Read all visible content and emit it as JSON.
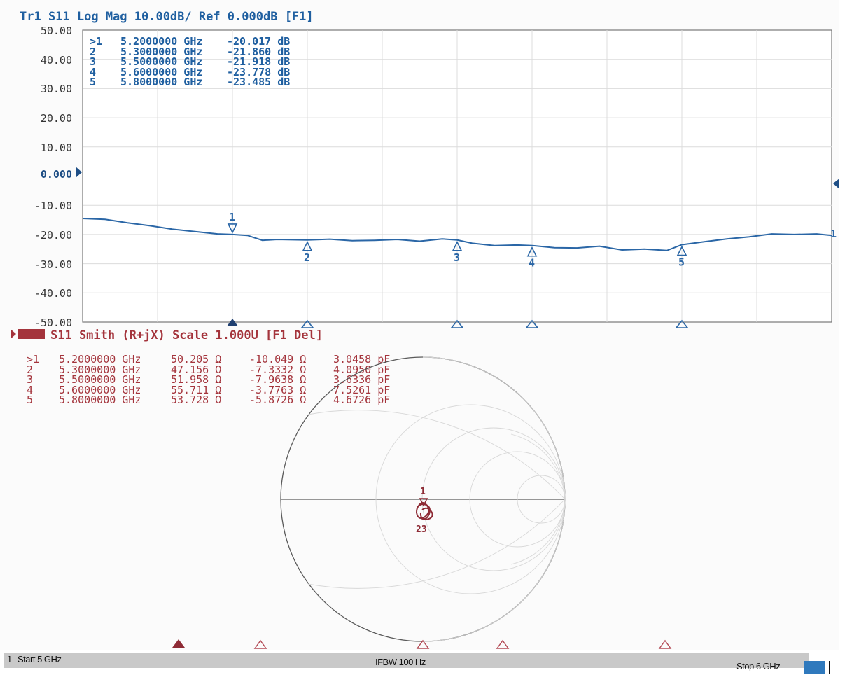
{
  "trace1": {
    "header": "Tr1 S11 Log Mag 10.00dB/ Ref 0.000dB [F1]",
    "ref_label": "0.000",
    "y_ticks": [
      "50.00",
      "40.00",
      "30.00",
      "20.00",
      "10.00",
      "0.000",
      "-10.00",
      "-20.00",
      "-30.00",
      "-40.00",
      "-50.00"
    ],
    "markers": [
      {
        "id": ">1",
        "freq": "5.2000000 GHz",
        "value": "-20.017 dB"
      },
      {
        "id": "2",
        "freq": "5.3000000 GHz",
        "value": "-21.860 dB"
      },
      {
        "id": "3",
        "freq": "5.5000000 GHz",
        "value": "-21.918 dB"
      },
      {
        "id": "4",
        "freq": "5.6000000 GHz",
        "value": "-23.778 dB"
      },
      {
        "id": "5",
        "freq": "5.8000000 GHz",
        "value": "-23.485 dB"
      }
    ],
    "marker_tags": [
      "1",
      "2",
      "3",
      "4",
      "5"
    ],
    "trace_end_label": "1",
    "color": "#1f5fa0"
  },
  "trace2": {
    "header": "S11 Smith (R+jX) Scale 1.000U [F1 Del]",
    "markers": [
      {
        "id": ">1",
        "freq": "5.2000000 GHz",
        "r": "50.205 Ω",
        "x": "-10.049 Ω",
        "c": "3.0458 pF"
      },
      {
        "id": "2",
        "freq": "5.3000000 GHz",
        "r": "47.156 Ω",
        "x": "-7.3332 Ω",
        "c": "4.0950 pF"
      },
      {
        "id": "3",
        "freq": "5.5000000 GHz",
        "r": "51.958 Ω",
        "x": "-7.9638 Ω",
        "c": "3.6336 pF"
      },
      {
        "id": "4",
        "freq": "5.6000000 GHz",
        "r": "55.711 Ω",
        "x": "-3.7763 Ω",
        "c": "7.5261 pF"
      },
      {
        "id": "5",
        "freq": "5.8000000 GHz",
        "r": "53.728 Ω",
        "x": "-5.8726 Ω",
        "c": "4.6726 pF"
      }
    ],
    "color": "#a4343c"
  },
  "status": {
    "channel": "1",
    "start": "Start 5 GHz",
    "ifbw": "IFBW 100 Hz",
    "stop": "Stop 6 GHz"
  },
  "chart_data": {
    "type": "line",
    "title": "Tr1 S11 Log Mag 10.00dB/ Ref 0.000dB [F1]",
    "xlabel": "",
    "ylabel": "",
    "xlim": [
      5.0,
      6.0
    ],
    "ylim": [
      -50,
      50
    ],
    "grid": true,
    "series": [
      {
        "name": "S11",
        "x": [
          5.0,
          5.03,
          5.06,
          5.09,
          5.12,
          5.15,
          5.18,
          5.2,
          5.22,
          5.24,
          5.26,
          5.28,
          5.3,
          5.33,
          5.36,
          5.39,
          5.42,
          5.45,
          5.48,
          5.5,
          5.52,
          5.55,
          5.58,
          5.6,
          5.63,
          5.66,
          5.69,
          5.72,
          5.75,
          5.78,
          5.8,
          5.83,
          5.86,
          5.89,
          5.92,
          5.95,
          5.98,
          6.0
        ],
        "values": [
          -14.5,
          -14.8,
          -16.0,
          -17.0,
          -18.2,
          -19.0,
          -19.8,
          -20.0,
          -20.3,
          -22.0,
          -21.7,
          -21.8,
          -21.9,
          -21.6,
          -22.1,
          -22.0,
          -21.7,
          -22.3,
          -21.5,
          -21.9,
          -23.0,
          -23.8,
          -23.6,
          -23.8,
          -24.5,
          -24.6,
          -24.0,
          -25.3,
          -25.0,
          -25.5,
          -23.5,
          -22.5,
          -21.5,
          -20.8,
          -19.8,
          -20.0,
          -19.8,
          -20.3
        ]
      }
    ],
    "markers_x": [
      5.2,
      5.3,
      5.5,
      5.6,
      5.8
    ]
  }
}
